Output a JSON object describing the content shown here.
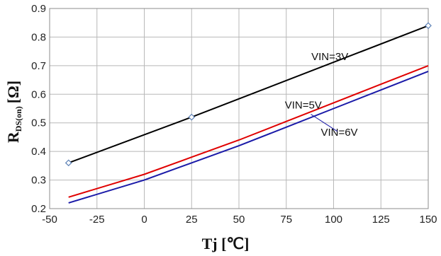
{
  "chart_data": {
    "type": "line",
    "xlabel": "Tj [℃]",
    "ylabel": "R",
    "ylabel_sub": "DS(on)",
    "ylabel_unit": "[Ω]",
    "xlim": [
      -50,
      150
    ],
    "ylim": [
      0.2,
      0.9
    ],
    "x_ticks": [
      -50,
      -25,
      0,
      25,
      50,
      75,
      100,
      125,
      150
    ],
    "y_ticks": [
      0.2,
      0.3,
      0.4,
      0.5,
      0.6,
      0.7,
      0.8,
      0.9
    ],
    "grid": true,
    "series": [
      {
        "name": "VIN=3V",
        "color": "#000000",
        "x": [
          -40,
          25,
          150
        ],
        "y": [
          0.36,
          0.52,
          0.84
        ],
        "markers": "diamond"
      },
      {
        "name": "VIN=5V",
        "color": "#e00000",
        "x": [
          -40,
          0,
          25,
          50,
          75,
          100,
          125,
          150
        ],
        "y": [
          0.24,
          0.32,
          0.38,
          0.44,
          0.505,
          0.57,
          0.635,
          0.7
        ]
      },
      {
        "name": "VIN=6V",
        "color": "#1a1aa8",
        "x": [
          -40,
          0,
          25,
          50,
          75,
          100,
          125,
          150
        ],
        "y": [
          0.22,
          0.3,
          0.36,
          0.42,
          0.485,
          0.55,
          0.615,
          0.68
        ]
      }
    ],
    "annotations": [
      {
        "text": "VIN=3V",
        "x": 98,
        "y": 0.72
      },
      {
        "text": "VIN=5V",
        "x": 84,
        "y": 0.55
      },
      {
        "text": "VIN=6V",
        "x": 103,
        "y": 0.455
      }
    ]
  }
}
